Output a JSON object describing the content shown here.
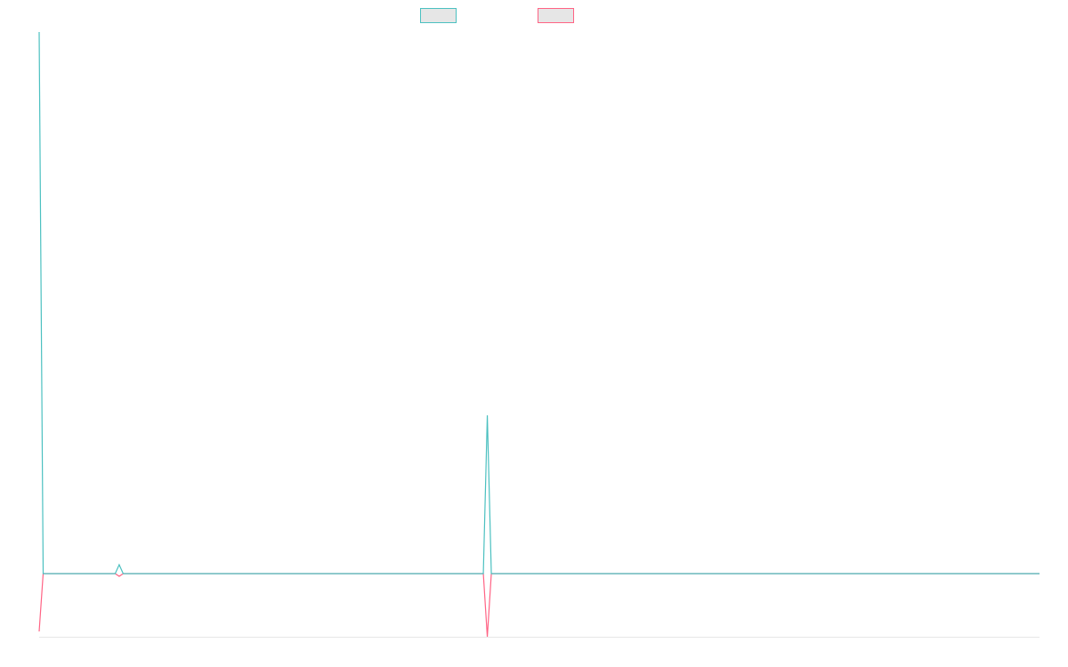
{
  "chart_data": {
    "type": "line",
    "ylim": [
      -0.71,
      6.09
    ],
    "series": [
      {
        "color": "#4bc0c0",
        "values": [
          6.09,
          0,
          0,
          0,
          0,
          0,
          0,
          0,
          0,
          0,
          0,
          0,
          0,
          0,
          0,
          0,
          0,
          0,
          0,
          0,
          0.1,
          0,
          0,
          0,
          0,
          0,
          0,
          0,
          0,
          0,
          0,
          0,
          0,
          0,
          0,
          0,
          0,
          0,
          0,
          0,
          0,
          0,
          0,
          0,
          0,
          0,
          0,
          0,
          0,
          0,
          0,
          0,
          0,
          0,
          0,
          0,
          0,
          0,
          0,
          0,
          0,
          0,
          0,
          0,
          0,
          0,
          0,
          0,
          0,
          0,
          0,
          0,
          0,
          0,
          0,
          0,
          0,
          0,
          0,
          0,
          0,
          0,
          0,
          0,
          0,
          0,
          0,
          0,
          0,
          0,
          0,
          0,
          0,
          0,
          0,
          0,
          0,
          0,
          0,
          0,
          0,
          0,
          0,
          0,
          0,
          0,
          0,
          0,
          0,
          0,
          0,
          0,
          1.78,
          0,
          0,
          0,
          0,
          0,
          0,
          0,
          0,
          0,
          0,
          0,
          0,
          0,
          0,
          0,
          0,
          0,
          0,
          0,
          0,
          0,
          0,
          0,
          0,
          0,
          0,
          0,
          0,
          0,
          0,
          0,
          0,
          0,
          0,
          0,
          0,
          0,
          0,
          0,
          0,
          0,
          0,
          0,
          0,
          0,
          0,
          0,
          0,
          0,
          0,
          0,
          0,
          0,
          0,
          0,
          0,
          0,
          0,
          0,
          0,
          0,
          0,
          0,
          0,
          0,
          0,
          0,
          0,
          0,
          0,
          0,
          0,
          0,
          0,
          0,
          0,
          0,
          0,
          0,
          0,
          0,
          0,
          0,
          0,
          0,
          0,
          0,
          0,
          0,
          0,
          0,
          0,
          0,
          0,
          0,
          0,
          0,
          0,
          0,
          0,
          0,
          0,
          0,
          0,
          0,
          0,
          0,
          0,
          0,
          0,
          0,
          0,
          0,
          0,
          0,
          0,
          0,
          0,
          0,
          0,
          0,
          0,
          0,
          0,
          0,
          0,
          0,
          0,
          0,
          0,
          0,
          0,
          0,
          0,
          0,
          0,
          0,
          0
        ]
      },
      {
        "color": "#ff6384",
        "values": [
          -0.65,
          0,
          0,
          0,
          0,
          0,
          0,
          0,
          0,
          0,
          0,
          0,
          0,
          0,
          0,
          0,
          0,
          0,
          0,
          0,
          -0.03,
          0,
          0,
          0,
          0,
          0,
          0,
          0,
          0,
          0,
          0,
          0,
          0,
          0,
          0,
          0,
          0,
          0,
          0,
          0,
          0,
          0,
          0,
          0,
          0,
          0,
          0,
          0,
          0,
          0,
          0,
          0,
          0,
          0,
          0,
          0,
          0,
          0,
          0,
          0,
          0,
          0,
          0,
          0,
          0,
          0,
          0,
          0,
          0,
          0,
          0,
          0,
          0,
          0,
          0,
          0,
          0,
          0,
          0,
          0,
          0,
          0,
          0,
          0,
          0,
          0,
          0,
          0,
          0,
          0,
          0,
          0,
          0,
          0,
          0,
          0,
          0,
          0,
          0,
          0,
          0,
          0,
          0,
          0,
          0,
          0,
          0,
          0,
          0,
          0,
          0,
          0,
          -0.71,
          0,
          0,
          0,
          0,
          0,
          0,
          0,
          0,
          0,
          0,
          0,
          0,
          0,
          0,
          0,
          0,
          0,
          0,
          0,
          0,
          0,
          0,
          0,
          0,
          0,
          0,
          0,
          0,
          0,
          0,
          0,
          0,
          0,
          0,
          0,
          0,
          0,
          0,
          0,
          0,
          0,
          0,
          0,
          0,
          0,
          0,
          0,
          0,
          0,
          0,
          0,
          0,
          0,
          0,
          0,
          0,
          0,
          0,
          0,
          0,
          0,
          0,
          0,
          0,
          0,
          0,
          0,
          0,
          0,
          0,
          0,
          0,
          0,
          0,
          0,
          0,
          0,
          0,
          0,
          0,
          0,
          0,
          0,
          0,
          0,
          0,
          0,
          0,
          0,
          0,
          0,
          0,
          0,
          0,
          0,
          0,
          0,
          0,
          0,
          0,
          0,
          0,
          0,
          0,
          0,
          0,
          0,
          0,
          0,
          0,
          0,
          0,
          0,
          0,
          0,
          0,
          0,
          0,
          0,
          0,
          0,
          0,
          0,
          0,
          0,
          0,
          0,
          0,
          0,
          0,
          0,
          0,
          0,
          0,
          0,
          0,
          0,
          0
        ]
      }
    ]
  }
}
